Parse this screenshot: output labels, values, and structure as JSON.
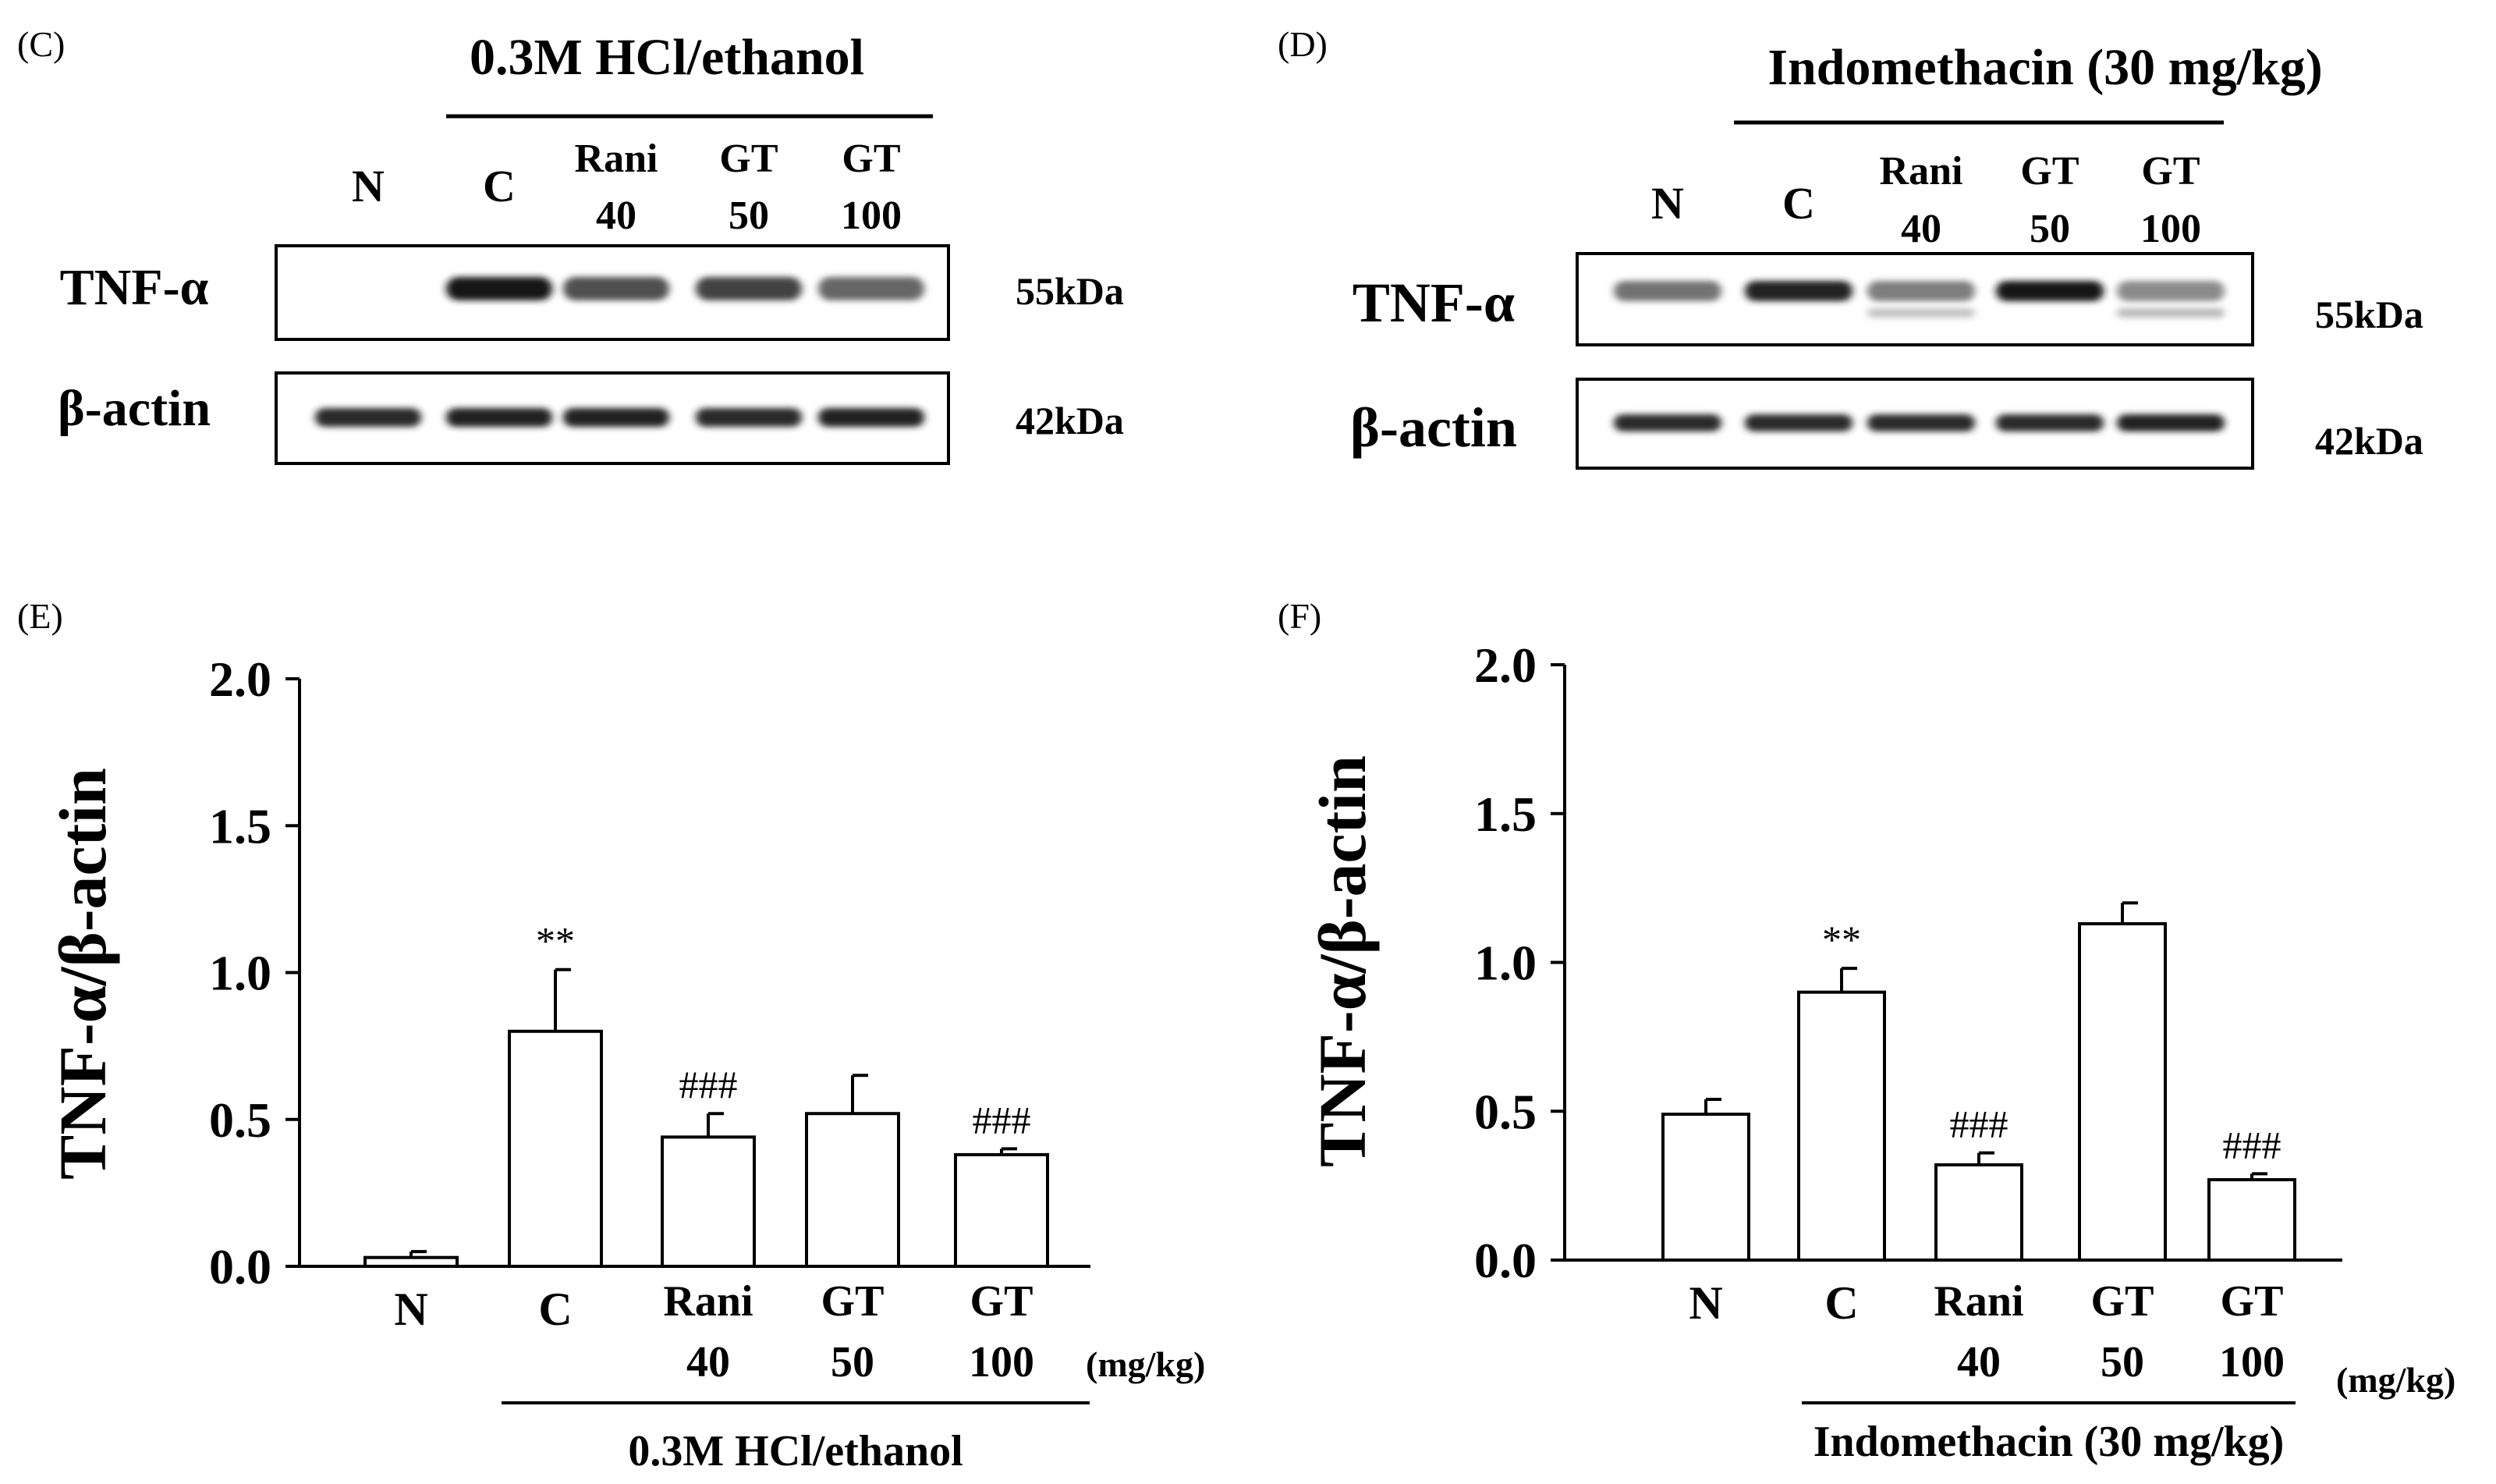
{
  "panels": {
    "C": {
      "label": "(C)",
      "treatment": "0.3M HCl/ethanol",
      "lanes": [
        {
          "l1": "N",
          "l2": ""
        },
        {
          "l1": "C",
          "l2": ""
        },
        {
          "l1": "Rani",
          "l2": "40"
        },
        {
          "l1": "GT",
          "l2": "50"
        },
        {
          "l1": "GT",
          "l2": "100"
        }
      ],
      "blots": [
        {
          "protein": "TNF-α",
          "mw": "55kDa",
          "intensity": [
            0.0,
            1.0,
            0.75,
            0.8,
            0.65
          ],
          "faint": [
            0,
            0,
            0,
            0,
            0
          ]
        },
        {
          "protein": "β-actin",
          "mw": "42kDa",
          "intensity": [
            0.9,
            0.95,
            0.95,
            0.9,
            0.95
          ],
          "faint": [
            0,
            0,
            0,
            0,
            0
          ]
        }
      ]
    },
    "D": {
      "label": "(D)",
      "treatment": "Indomethacin (30 mg/kg)",
      "lanes": [
        {
          "l1": "N",
          "l2": ""
        },
        {
          "l1": "C",
          "l2": ""
        },
        {
          "l1": "Rani",
          "l2": "40"
        },
        {
          "l1": "GT",
          "l2": "50"
        },
        {
          "l1": "GT",
          "l2": "100"
        }
      ],
      "blots": [
        {
          "protein": "TNF-α",
          "mw": "55kDa",
          "intensity": [
            0.6,
            0.95,
            0.55,
            1.0,
            0.5
          ],
          "faint": [
            0,
            0,
            0.3,
            0,
            0.35
          ]
        },
        {
          "protein": "β-actin",
          "mw": "42kDa",
          "intensity": [
            0.9,
            0.9,
            0.9,
            0.9,
            0.95
          ],
          "faint": [
            0,
            0,
            0,
            0,
            0
          ]
        }
      ]
    }
  },
  "chart_data": [
    {
      "panel": "(E)",
      "type": "bar",
      "ylabel": "TNF-α/β-actin",
      "ylim": [
        0,
        2.0
      ],
      "yticks": [
        "0.0",
        "0.5",
        "1.0",
        "1.5",
        "2.0"
      ],
      "categories": [
        "N",
        "C",
        "Rani",
        "GT",
        "GT"
      ],
      "category_doses": [
        "",
        "",
        "40",
        "50",
        "100"
      ],
      "values": [
        0.03,
        0.8,
        0.44,
        0.52,
        0.38
      ],
      "errors": [
        0.02,
        0.21,
        0.08,
        0.13,
        0.02
      ],
      "annotations": [
        "",
        "**",
        "###",
        "",
        "###"
      ],
      "unit": "(mg/kg)",
      "group_label": "0.3M HCl/ethanol"
    },
    {
      "panel": "(F)",
      "type": "bar",
      "ylabel": "TNF-α/β-actin",
      "ylim": [
        0,
        2.0
      ],
      "yticks": [
        "0.0",
        "0.5",
        "1.0",
        "1.5",
        "2.0"
      ],
      "categories": [
        "N",
        "C",
        "Rani",
        "GT",
        "GT"
      ],
      "category_doses": [
        "",
        "",
        "40",
        "50",
        "100"
      ],
      "values": [
        0.49,
        0.9,
        0.32,
        1.13,
        0.27
      ],
      "errors": [
        0.05,
        0.08,
        0.04,
        0.07,
        0.02
      ],
      "annotations": [
        "",
        "**",
        "###",
        "",
        "###"
      ],
      "unit": "(mg/kg)",
      "group_label": "Indomethacin (30 mg/kg)"
    }
  ]
}
